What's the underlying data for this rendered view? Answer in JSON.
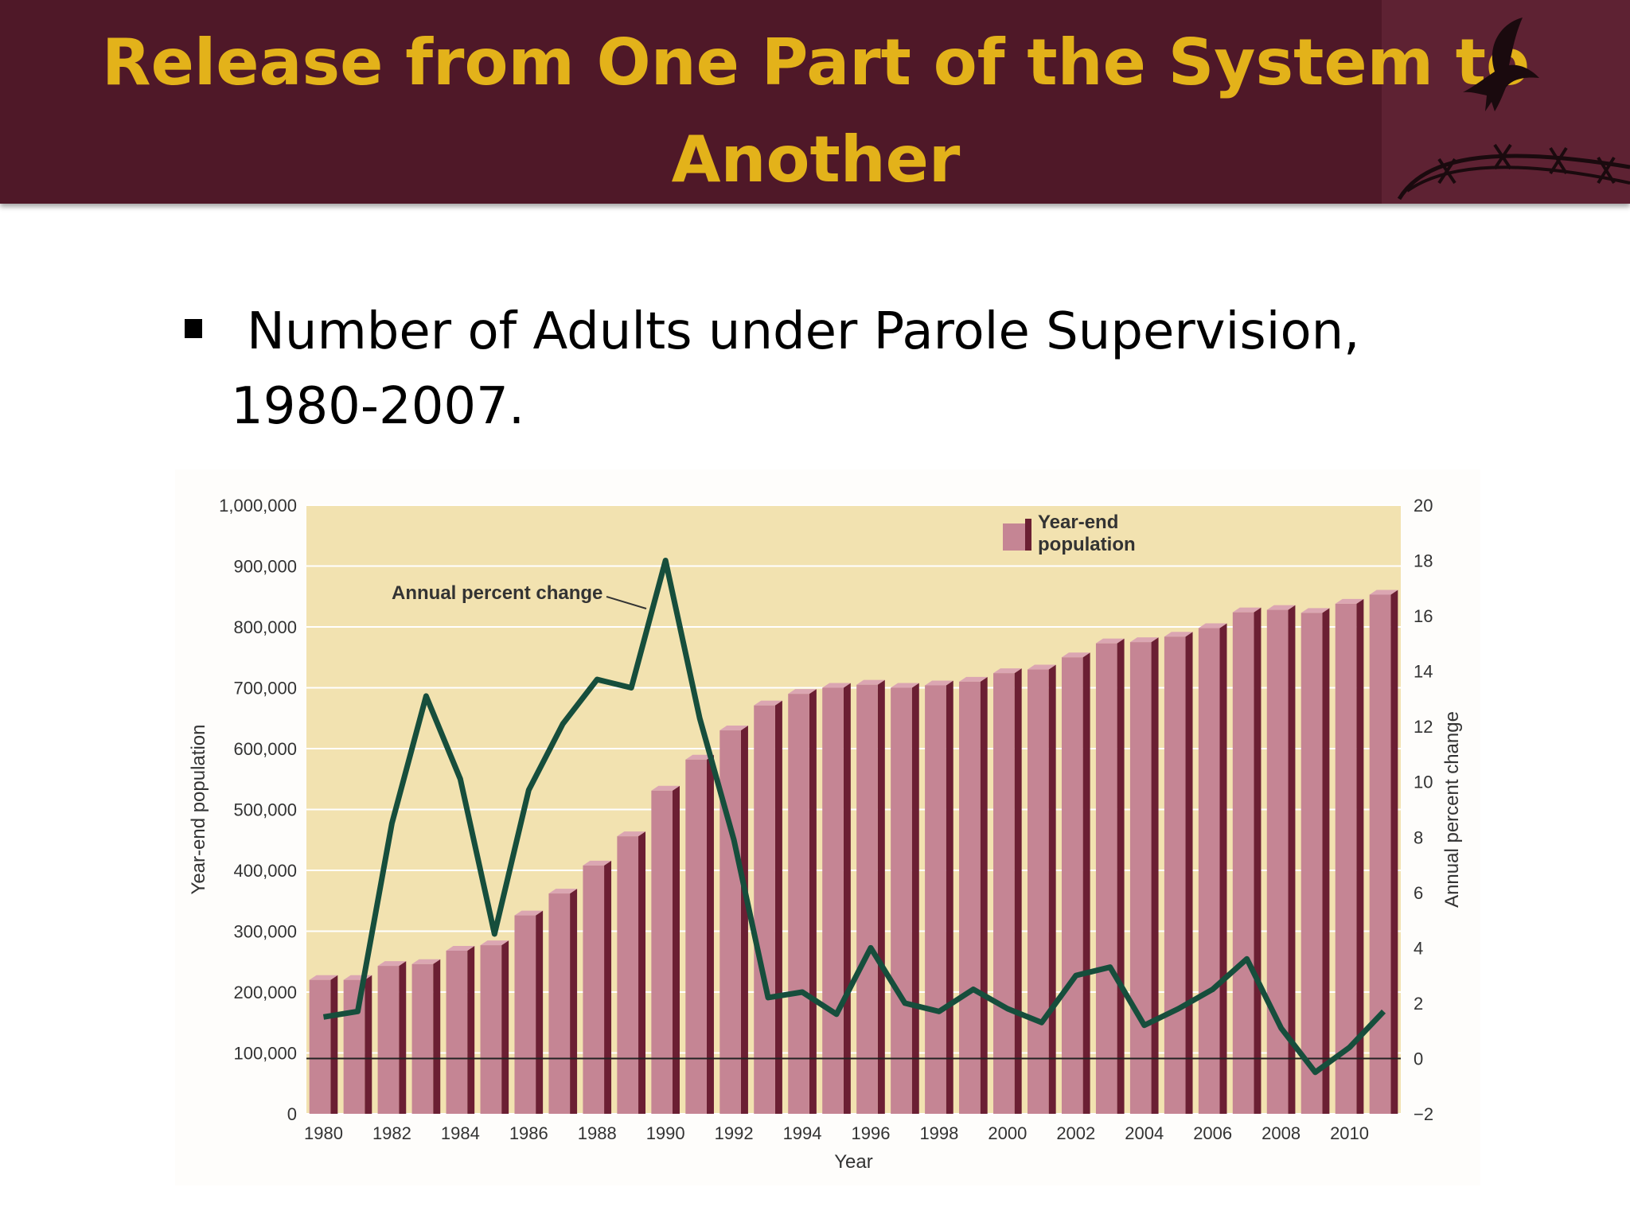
{
  "slide": {
    "title": "Release from One Part of the System to Another",
    "subtitle": "Number of Adults under Parole Supervision, 1980-2007."
  },
  "colors": {
    "header_bg": "#4f1828",
    "title_text": "#e3b21a",
    "plot_bg": "#f2e2b0",
    "bar_front": "#c58594",
    "bar_side": "#6b1f33",
    "line": "#164e3c"
  },
  "chart_data": {
    "type": "bar",
    "xlabel": "Year",
    "ylabel": "Year-end population",
    "y2label": "Annual percent change",
    "ylim": [
      0,
      1000000
    ],
    "y2lim": [
      -2,
      20
    ],
    "yticks": [
      "0",
      "100,000",
      "200,000",
      "300,000",
      "400,000",
      "500,000",
      "600,000",
      "700,000",
      "800,000",
      "900,000",
      "1,000,000"
    ],
    "y2ticks": [
      "−2",
      "0",
      "2",
      "4",
      "6",
      "8",
      "10",
      "12",
      "14",
      "16",
      "18",
      "20"
    ],
    "xtick_labels": [
      "1980",
      "1982",
      "1984",
      "1986",
      "1988",
      "1990",
      "1992",
      "1994",
      "1996",
      "1998",
      "2000",
      "2002",
      "2004",
      "2006",
      "2008",
      "2010"
    ],
    "legend": {
      "label": "Year-end population",
      "placement": "top-right"
    },
    "annotation": "Annual percent change",
    "grid": true,
    "categories": [
      1980,
      1981,
      1982,
      1983,
      1984,
      1985,
      1986,
      1987,
      1988,
      1989,
      1990,
      1991,
      1992,
      1993,
      1994,
      1995,
      1996,
      1997,
      1998,
      1999,
      2000,
      2001,
      2002,
      2003,
      2004,
      2005,
      2006,
      2007,
      2008,
      2009,
      2010,
      2011
    ],
    "series": [
      {
        "name": "Year-end population",
        "type": "bar",
        "axis": "left",
        "values": [
          220000,
          220000,
          243000,
          246000,
          268000,
          277000,
          326000,
          362000,
          408000,
          456000,
          531000,
          582000,
          630000,
          671000,
          690000,
          700000,
          705000,
          700000,
          704000,
          710000,
          724000,
          730000,
          750000,
          773000,
          775000,
          784000,
          798000,
          824000,
          828000,
          823000,
          838000,
          853000
        ]
      },
      {
        "name": "Annual percent change",
        "type": "line",
        "axis": "right",
        "values": [
          1.5,
          1.7,
          8.5,
          13.1,
          10.1,
          4.5,
          9.7,
          12.1,
          13.7,
          13.4,
          18.0,
          12.3,
          7.9,
          2.2,
          2.4,
          1.6,
          4.0,
          2.0,
          1.7,
          2.5,
          1.8,
          1.3,
          3.0,
          3.3,
          1.2,
          1.8,
          2.5,
          3.6,
          1.1,
          -0.5,
          0.4,
          1.7
        ]
      }
    ]
  }
}
